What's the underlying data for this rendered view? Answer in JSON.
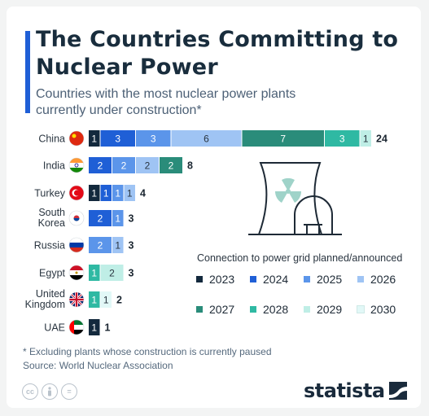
{
  "header": {
    "title": "The Countries Committing to Nuclear Power",
    "subtitle": "Countries with the most nuclear power plants currently under construction*"
  },
  "chart_data": {
    "type": "bar",
    "orientation": "horizontal",
    "stacked": true,
    "categories": [
      "China",
      "India",
      "Turkey",
      "South Korea",
      "Russia",
      "Egypt",
      "United Kingdom",
      "UAE"
    ],
    "category_lines": [
      [
        "China"
      ],
      [
        "India"
      ],
      [
        "Turkey"
      ],
      [
        "South",
        "Korea"
      ],
      [
        "Russia"
      ],
      [
        "Egypt"
      ],
      [
        "United",
        "Kingdom"
      ],
      [
        "UAE"
      ]
    ],
    "totals": [
      24,
      8,
      4,
      3,
      3,
      3,
      2,
      1
    ],
    "series": [
      {
        "name": "2023",
        "color": "#13293d",
        "values": [
          1,
          0,
          1,
          0,
          0,
          0,
          0,
          1
        ]
      },
      {
        "name": "2024",
        "color": "#1f5fd6",
        "values": [
          3,
          2,
          1,
          2,
          0,
          0,
          0,
          0
        ]
      },
      {
        "name": "2025",
        "color": "#5b95ea",
        "values": [
          3,
          2,
          1,
          1,
          2,
          0,
          0,
          0
        ]
      },
      {
        "name": "2026",
        "color": "#9fc4f4",
        "values": [
          6,
          2,
          1,
          0,
          1,
          0,
          0,
          0
        ]
      },
      {
        "name": "2027",
        "color": "#2a8c7a",
        "values": [
          7,
          2,
          0,
          0,
          0,
          0,
          0,
          0
        ]
      },
      {
        "name": "2028",
        "color": "#2fb9a3",
        "values": [
          3,
          0,
          0,
          0,
          0,
          1,
          1,
          0
        ]
      },
      {
        "name": "2029",
        "color": "#bfeee6",
        "values": [
          1,
          0,
          0,
          0,
          0,
          2,
          0,
          0
        ]
      },
      {
        "name": "2030",
        "color": "#e2f8f7",
        "values": [
          0,
          0,
          0,
          0,
          0,
          0,
          1,
          0
        ]
      }
    ],
    "legend_title": "Connection to power grid planned/announced",
    "legend_position": "bottom-right"
  },
  "footer": {
    "note": "* Excluding plants whose construction is currently paused",
    "source": "Source: World Nuclear Association",
    "brand": "statista",
    "license_icons": [
      "cc",
      "by",
      "="
    ]
  }
}
